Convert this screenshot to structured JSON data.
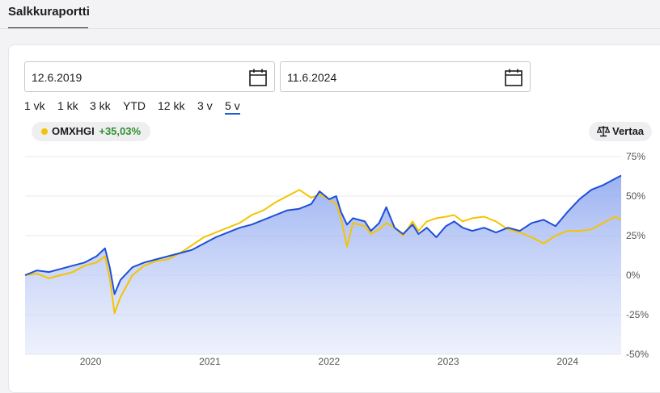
{
  "header": {
    "tab_label": "Salkkuraportti"
  },
  "date_range": {
    "start": "12.6.2019",
    "end": "11.6.2024"
  },
  "range_buttons": [
    {
      "label": "1 vk",
      "active": false
    },
    {
      "label": "1 kk",
      "active": false
    },
    {
      "label": "3 kk",
      "active": false
    },
    {
      "label": "YTD",
      "active": false
    },
    {
      "label": "12 kk",
      "active": false
    },
    {
      "label": "3 v",
      "active": false
    },
    {
      "label": "5 v",
      "active": true
    }
  ],
  "benchmark_chip": {
    "name": "OMXHGI",
    "change": "+35,03%"
  },
  "compare_button": {
    "label": "Vertaa"
  },
  "colors": {
    "portfolio_line": "#1f4fd8",
    "benchmark_line": "#f5c400",
    "accent": "#1f5bd8",
    "positive": "#2f8f2f"
  },
  "chart_data": {
    "type": "line",
    "x_ticks": [
      "2020",
      "2021",
      "2022",
      "2023",
      "2024"
    ],
    "y_ticks": [
      "75%",
      "50%",
      "25%",
      "0%",
      "-25%",
      "-50%"
    ],
    "ylim": [
      -50,
      75
    ],
    "xlim": [
      2019.45,
      2024.45
    ],
    "series": [
      {
        "role": "portfolio",
        "fill": true,
        "points": [
          [
            2019.45,
            0
          ],
          [
            2019.55,
            3
          ],
          [
            2019.65,
            2
          ],
          [
            2019.75,
            4
          ],
          [
            2019.85,
            6
          ],
          [
            2019.95,
            8
          ],
          [
            2020.05,
            12
          ],
          [
            2020.12,
            17
          ],
          [
            2020.16,
            5
          ],
          [
            2020.2,
            -12
          ],
          [
            2020.25,
            -3
          ],
          [
            2020.35,
            5
          ],
          [
            2020.45,
            8
          ],
          [
            2020.55,
            10
          ],
          [
            2020.65,
            12
          ],
          [
            2020.75,
            14
          ],
          [
            2020.85,
            16
          ],
          [
            2020.95,
            20
          ],
          [
            2021.05,
            24
          ],
          [
            2021.15,
            27
          ],
          [
            2021.25,
            30
          ],
          [
            2021.35,
            32
          ],
          [
            2021.45,
            35
          ],
          [
            2021.55,
            38
          ],
          [
            2021.65,
            41
          ],
          [
            2021.75,
            42
          ],
          [
            2021.85,
            45
          ],
          [
            2021.92,
            53
          ],
          [
            2022.0,
            48
          ],
          [
            2022.06,
            50
          ],
          [
            2022.1,
            40
          ],
          [
            2022.15,
            32
          ],
          [
            2022.2,
            36
          ],
          [
            2022.3,
            34
          ],
          [
            2022.35,
            28
          ],
          [
            2022.42,
            33
          ],
          [
            2022.48,
            43
          ],
          [
            2022.55,
            30
          ],
          [
            2022.62,
            26
          ],
          [
            2022.7,
            32
          ],
          [
            2022.75,
            26
          ],
          [
            2022.82,
            30
          ],
          [
            2022.9,
            24
          ],
          [
            2022.98,
            31
          ],
          [
            2023.05,
            34
          ],
          [
            2023.12,
            30
          ],
          [
            2023.2,
            28
          ],
          [
            2023.3,
            30
          ],
          [
            2023.4,
            27
          ],
          [
            2023.5,
            30
          ],
          [
            2023.6,
            28
          ],
          [
            2023.7,
            33
          ],
          [
            2023.8,
            35
          ],
          [
            2023.9,
            31
          ],
          [
            2024.0,
            40
          ],
          [
            2024.1,
            48
          ],
          [
            2024.2,
            54
          ],
          [
            2024.3,
            57
          ],
          [
            2024.4,
            61
          ],
          [
            2024.45,
            63
          ]
        ]
      },
      {
        "role": "benchmark",
        "name": "OMXHGI",
        "fill": false,
        "points": [
          [
            2019.45,
            0
          ],
          [
            2019.55,
            1
          ],
          [
            2019.65,
            -2
          ],
          [
            2019.75,
            0
          ],
          [
            2019.85,
            2
          ],
          [
            2019.95,
            6
          ],
          [
            2020.05,
            8
          ],
          [
            2020.12,
            12
          ],
          [
            2020.16,
            -2
          ],
          [
            2020.2,
            -24
          ],
          [
            2020.25,
            -14
          ],
          [
            2020.35,
            0
          ],
          [
            2020.45,
            6
          ],
          [
            2020.55,
            9
          ],
          [
            2020.65,
            10
          ],
          [
            2020.75,
            14
          ],
          [
            2020.85,
            19
          ],
          [
            2020.95,
            24
          ],
          [
            2021.05,
            27
          ],
          [
            2021.15,
            30
          ],
          [
            2021.25,
            33
          ],
          [
            2021.35,
            38
          ],
          [
            2021.45,
            41
          ],
          [
            2021.55,
            46
          ],
          [
            2021.65,
            50
          ],
          [
            2021.75,
            54
          ],
          [
            2021.85,
            49
          ],
          [
            2021.92,
            51
          ],
          [
            2022.0,
            48
          ],
          [
            2022.06,
            45
          ],
          [
            2022.1,
            36
          ],
          [
            2022.15,
            18
          ],
          [
            2022.2,
            33
          ],
          [
            2022.3,
            31
          ],
          [
            2022.35,
            26
          ],
          [
            2022.42,
            29
          ],
          [
            2022.48,
            33
          ],
          [
            2022.55,
            30
          ],
          [
            2022.62,
            25
          ],
          [
            2022.7,
            34
          ],
          [
            2022.75,
            28
          ],
          [
            2022.82,
            34
          ],
          [
            2022.9,
            36
          ],
          [
            2022.98,
            37
          ],
          [
            2023.05,
            38
          ],
          [
            2023.12,
            34
          ],
          [
            2023.2,
            36
          ],
          [
            2023.3,
            37
          ],
          [
            2023.4,
            34
          ],
          [
            2023.5,
            29
          ],
          [
            2023.6,
            27
          ],
          [
            2023.7,
            24
          ],
          [
            2023.8,
            20
          ],
          [
            2023.9,
            25
          ],
          [
            2024.0,
            28
          ],
          [
            2024.1,
            28
          ],
          [
            2024.2,
            29
          ],
          [
            2024.3,
            33
          ],
          [
            2024.4,
            37
          ],
          [
            2024.45,
            35
          ]
        ]
      }
    ]
  }
}
